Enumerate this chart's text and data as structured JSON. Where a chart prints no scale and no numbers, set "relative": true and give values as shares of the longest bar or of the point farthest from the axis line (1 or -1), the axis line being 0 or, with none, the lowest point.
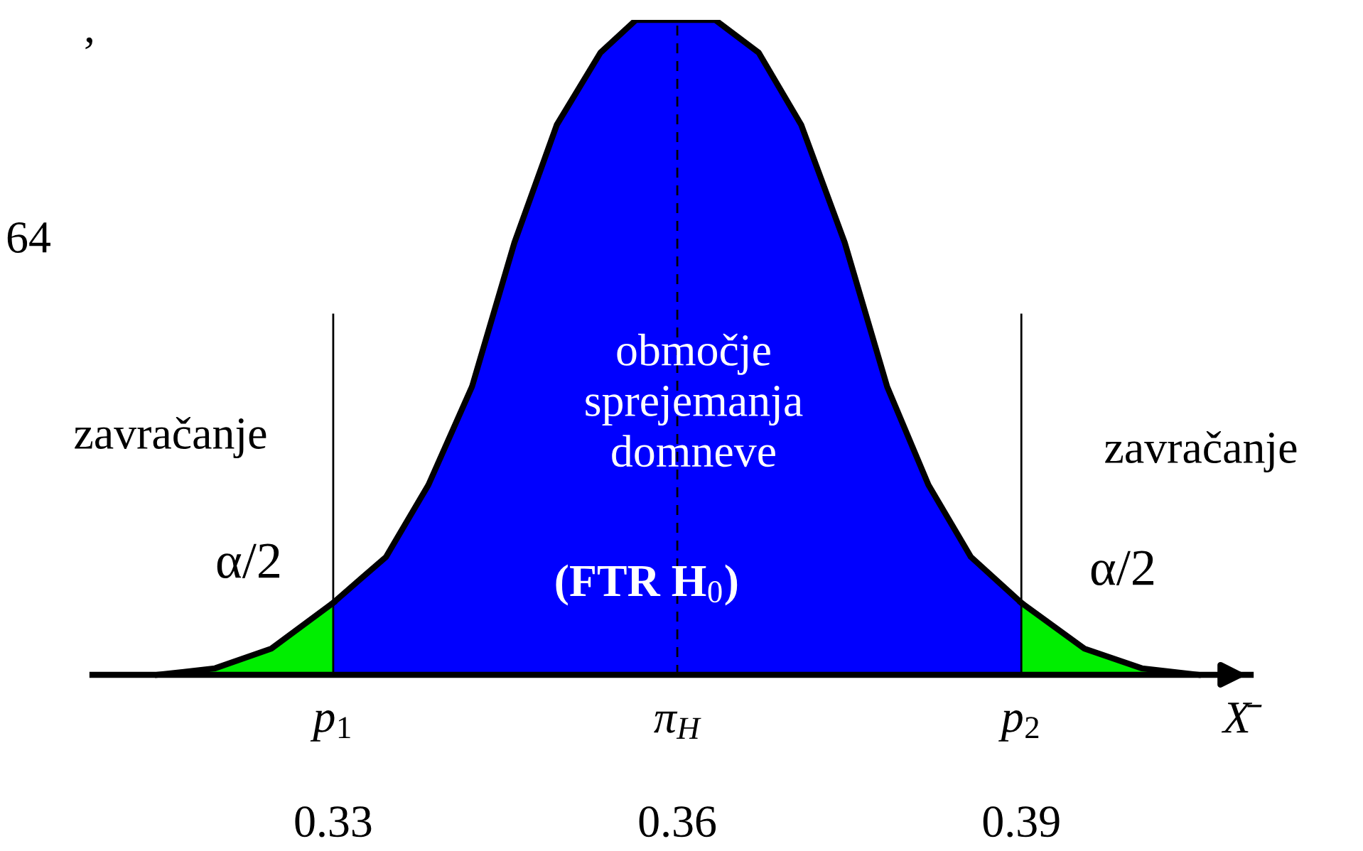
{
  "chart_data": {
    "type": "area",
    "relative": true,
    "xlabel": "X̄",
    "xlim": [
      0.309,
      0.41
    ],
    "xticks": [
      0.33,
      0.36,
      0.39
    ],
    "series": [
      {
        "color": "#00ee00",
        "x": [
          0.3147,
          0.3197,
          0.3246,
          0.33
        ],
        "values": [
          0,
          0.01,
          0.04,
          0.11
        ]
      },
      {
        "color": "#0000ff",
        "x": [
          0.33,
          0.3346,
          0.3383,
          0.3421,
          0.3458,
          0.3495,
          0.3533,
          0.3564,
          0.36,
          0.3633,
          0.3671,
          0.3708,
          0.3746,
          0.3783,
          0.3819,
          0.3856,
          0.39
        ],
        "values": [
          0.11,
          0.18,
          0.29,
          0.44,
          0.66,
          0.84,
          0.95,
          1,
          1,
          1,
          0.95,
          0.84,
          0.66,
          0.44,
          0.29,
          0.18,
          0.11
        ]
      },
      {
        "color": "#00ee00",
        "x": [
          0.39,
          0.3955,
          0.4005,
          0.4054
        ],
        "values": [
          0.11,
          0.04,
          0.01,
          0
        ]
      }
    ],
    "ref_lines": [
      {
        "axis": "x",
        "value": 0.33,
        "label": "p$_{1}$",
        "line_style": "solid",
        "color": "#000000"
      },
      {
        "axis": "x",
        "value": 0.36,
        "label": "π$_{H}$",
        "line_style": "dashed",
        "color": "#000000"
      },
      {
        "axis": "x",
        "value": 0.39,
        "label": "p$_{2}$",
        "line_style": "solid",
        "color": "#000000"
      }
    ],
    "annotations": [
      ",",
      "64",
      "zavračanje",
      "α/2",
      "območje\nsprejemanja\ndomneve",
      "(FTR H$_{0}$)",
      "zavračanje",
      "α/2"
    ]
  }
}
